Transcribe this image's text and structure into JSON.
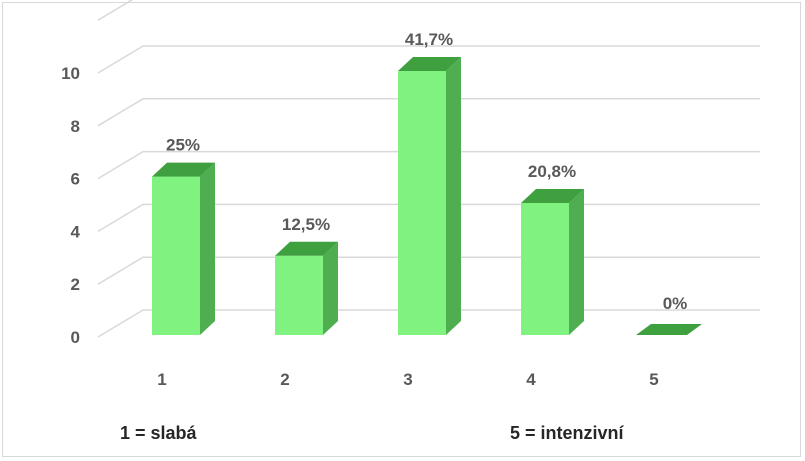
{
  "chart_data": {
    "type": "bar",
    "categories": [
      "1",
      "2",
      "3",
      "4",
      "5"
    ],
    "values": [
      6,
      3,
      10,
      5,
      0
    ],
    "data_labels": [
      "25%",
      "12,5%",
      "41,7%",
      "20,8%",
      "0%"
    ],
    "yticks": [
      "0",
      "2",
      "4",
      "6",
      "8",
      "10"
    ],
    "ylim": [
      0,
      12
    ],
    "grid": true,
    "title": "",
    "xlabel": "",
    "ylabel": "",
    "colors": {
      "bar_front": "#7ff27f",
      "bar_side": "#4fae4f",
      "bar_top": "#3fa03f",
      "grid": "#d9d9d9"
    }
  },
  "legend_notes": {
    "low": "1 = slabá",
    "high": "5 = intenzivní"
  }
}
